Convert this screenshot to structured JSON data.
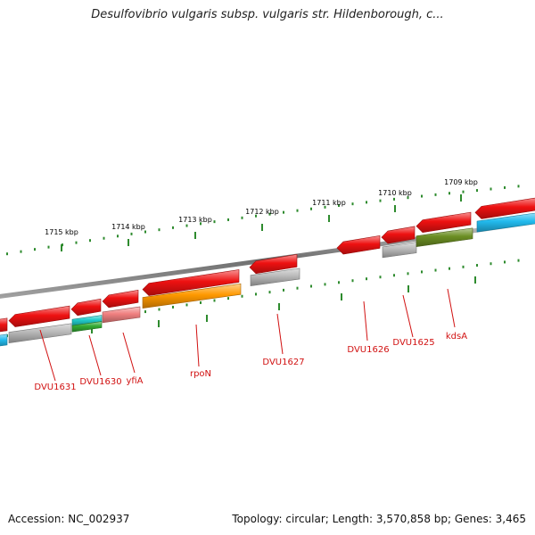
{
  "title": "Desulfovibrio vulgaris subsp. vulgaris str. Hildenborough, c...",
  "footer": {
    "accession": "Accession: NC_002937",
    "topology": "Topology: circular; Length: 3,570,858 bp; Genes: 3,465"
  },
  "colors": {
    "backbone": "#808080",
    "forward_gene": "#ee1111",
    "tick": "#2e8b2e",
    "gene_label": "#d11111",
    "orange": "#ff9900",
    "gray": "#b8b8b8",
    "pink": "#f08080",
    "olive": "#6b8e23",
    "cyan": "#22bbee",
    "teal": "#22cccc",
    "green": "#33aa33"
  },
  "kbp_ticks": [
    {
      "text": "1715 kbp"
    },
    {
      "text": "1714 kbp"
    },
    {
      "text": "1713 kbp"
    },
    {
      "text": "1712 kbp"
    },
    {
      "text": "1711 kbp"
    },
    {
      "text": "1710 kbp"
    },
    {
      "text": "1709 kbp"
    }
  ],
  "gene_labels": [
    {
      "text": "DVU1631"
    },
    {
      "text": "DVU1630"
    },
    {
      "text": "yfiA"
    },
    {
      "text": "rpoN"
    },
    {
      "text": "DVU1627"
    },
    {
      "text": "DVU1626"
    },
    {
      "text": "DVU1625"
    },
    {
      "text": "kdsA"
    }
  ]
}
